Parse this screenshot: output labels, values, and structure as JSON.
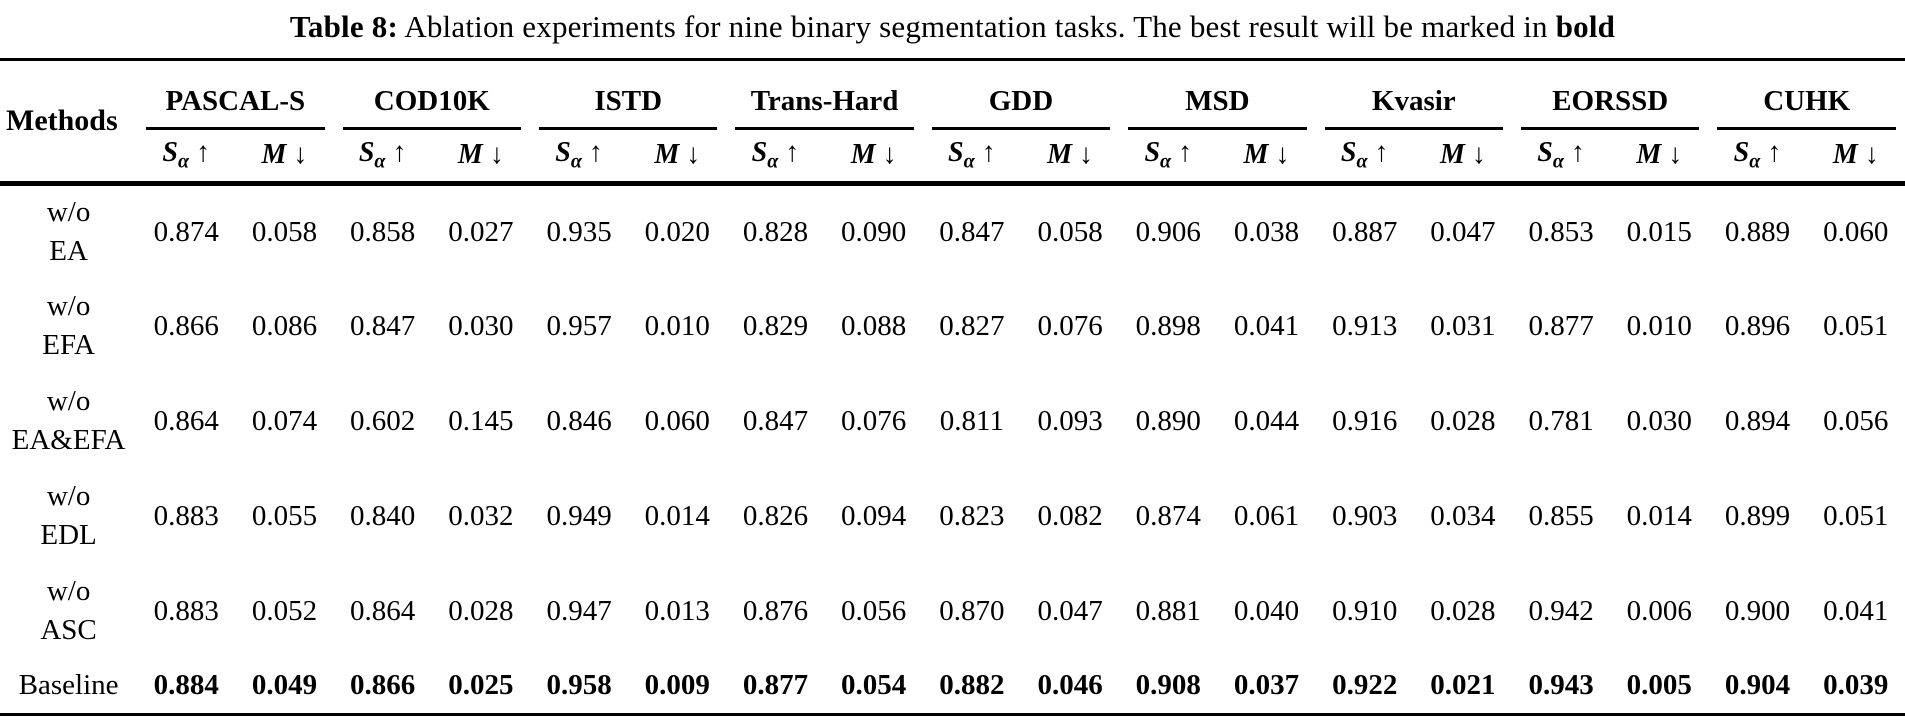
{
  "title": {
    "label": "Table 8:",
    "text": " Ablation experiments for nine binary segmentation tasks. The best result will be marked in ",
    "bold_word": "bold"
  },
  "table": {
    "methods_header": "Methods",
    "metrics": {
      "s_label": "S",
      "s_sub": "α",
      "up_arrow": "↑",
      "m_label": "M",
      "down_arrow": "↓"
    },
    "datasets": [
      "PASCAL-S",
      "COD10K",
      "ISTD",
      "Trans-Hard",
      "GDD",
      "MSD",
      "Kvasir",
      "EORSSD",
      "CUHK"
    ],
    "rows": [
      {
        "method": [
          "w/o",
          "EA"
        ],
        "bold": false,
        "values": [
          "0.874",
          "0.058",
          "0.858",
          "0.027",
          "0.935",
          "0.020",
          "0.828",
          "0.090",
          "0.847",
          "0.058",
          "0.906",
          "0.038",
          "0.887",
          "0.047",
          "0.853",
          "0.015",
          "0.889",
          "0.060"
        ]
      },
      {
        "method": [
          "w/o",
          "EFA"
        ],
        "bold": false,
        "values": [
          "0.866",
          "0.086",
          "0.847",
          "0.030",
          "0.957",
          "0.010",
          "0.829",
          "0.088",
          "0.827",
          "0.076",
          "0.898",
          "0.041",
          "0.913",
          "0.031",
          "0.877",
          "0.010",
          "0.896",
          "0.051"
        ]
      },
      {
        "method": [
          "w/o",
          "EA&EFA"
        ],
        "bold": false,
        "values": [
          "0.864",
          "0.074",
          "0.602",
          "0.145",
          "0.846",
          "0.060",
          "0.847",
          "0.076",
          "0.811",
          "0.093",
          "0.890",
          "0.044",
          "0.916",
          "0.028",
          "0.781",
          "0.030",
          "0.894",
          "0.056"
        ]
      },
      {
        "method": [
          "w/o",
          "EDL"
        ],
        "bold": false,
        "values": [
          "0.883",
          "0.055",
          "0.840",
          "0.032",
          "0.949",
          "0.014",
          "0.826",
          "0.094",
          "0.823",
          "0.082",
          "0.874",
          "0.061",
          "0.903",
          "0.034",
          "0.855",
          "0.014",
          "0.899",
          "0.051"
        ]
      },
      {
        "method": [
          "w/o",
          "ASC"
        ],
        "bold": false,
        "values": [
          "0.883",
          "0.052",
          "0.864",
          "0.028",
          "0.947",
          "0.013",
          "0.876",
          "0.056",
          "0.870",
          "0.047",
          "0.881",
          "0.040",
          "0.910",
          "0.028",
          "0.942",
          "0.006",
          "0.900",
          "0.041"
        ]
      },
      {
        "method": [
          "Baseline"
        ],
        "bold": true,
        "values": [
          "0.884",
          "0.049",
          "0.866",
          "0.025",
          "0.958",
          "0.009",
          "0.877",
          "0.054",
          "0.882",
          "0.046",
          "0.908",
          "0.037",
          "0.922",
          "0.021",
          "0.943",
          "0.005",
          "0.904",
          "0.039"
        ]
      }
    ]
  }
}
